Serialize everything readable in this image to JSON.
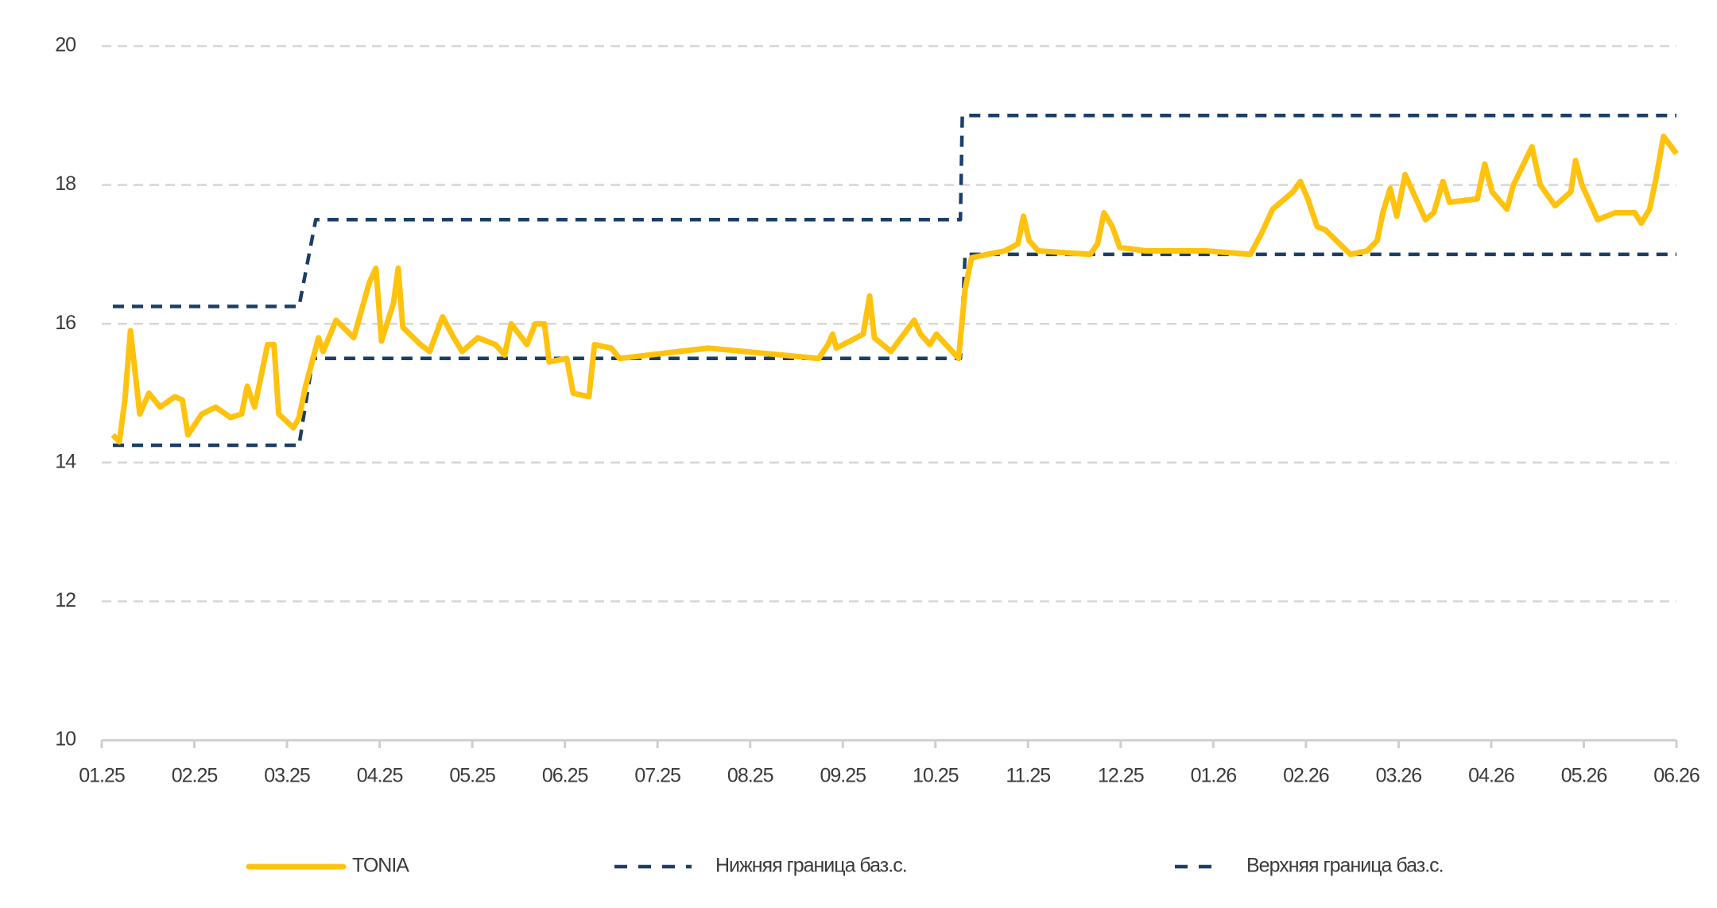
{
  "chart_data": {
    "type": "line",
    "xlim": [
      0,
      17
    ],
    "xticks": [
      {
        "value": 0,
        "label": "01.25"
      },
      {
        "value": 1,
        "label": "02.25"
      },
      {
        "value": 2,
        "label": "03.25"
      },
      {
        "value": 3,
        "label": "04.25"
      },
      {
        "value": 4,
        "label": "05.25"
      },
      {
        "value": 5,
        "label": "06.25"
      },
      {
        "value": 6,
        "label": "07.25"
      },
      {
        "value": 7,
        "label": "08.25"
      },
      {
        "value": 8,
        "label": "09.25"
      },
      {
        "value": 9,
        "label": "10.25"
      },
      {
        "value": 10,
        "label": "11.25"
      },
      {
        "value": 11,
        "label": "12.25"
      },
      {
        "value": 12,
        "label": "01.26"
      },
      {
        "value": 13,
        "label": "02.26"
      },
      {
        "value": 14,
        "label": "03.26"
      },
      {
        "value": 15,
        "label": "04.26"
      },
      {
        "value": 16,
        "label": "05.26"
      },
      {
        "value": 17,
        "label": "06.26"
      }
    ],
    "ylim": [
      10,
      20
    ],
    "yticks": [
      10,
      12,
      14,
      16,
      18,
      20
    ],
    "grid": true,
    "series": [
      {
        "name": "TONIA",
        "color": "#FFC20E",
        "style": "solid",
        "x": [
          0.12,
          0.19,
          0.25,
          0.31,
          0.36,
          0.41,
          0.51,
          0.63,
          0.79,
          0.87,
          0.93,
          1.08,
          1.23,
          1.39,
          1.51,
          1.57,
          1.65,
          1.79,
          1.86,
          1.91,
          2.07,
          2.13,
          2.2,
          2.28,
          2.34,
          2.39,
          2.53,
          2.72,
          2.89,
          2.96,
          3.02,
          3.15,
          3.2,
          3.25,
          3.44,
          3.54,
          3.68,
          3.8,
          3.89,
          4.06,
          4.25,
          4.35,
          4.42,
          4.59,
          4.68,
          4.78,
          4.83,
          5.02,
          5.09,
          5.26,
          5.32,
          5.5,
          5.59,
          6.55,
          7.74,
          7.84,
          7.89,
          7.93,
          8.22,
          8.29,
          8.34,
          8.52,
          8.77,
          8.84,
          8.94,
          9.01,
          9.25,
          9.32,
          9.39,
          9.56,
          9.75,
          9.89,
          9.95,
          10.01,
          10.11,
          10.67,
          10.75,
          10.82,
          10.91,
          10.99,
          11.27,
          11.92,
          12.4,
          12.52,
          12.64,
          12.86,
          12.94,
          13.02,
          13.12,
          13.21,
          13.48,
          13.66,
          13.77,
          13.83,
          13.91,
          13.98,
          14.07,
          14.29,
          14.38,
          14.48,
          14.55,
          14.85,
          14.93,
          15.01,
          15.17,
          15.24,
          15.44,
          15.53,
          15.69,
          15.86,
          15.91,
          15.98,
          16.15,
          16.34,
          16.55,
          16.62,
          16.71,
          16.78,
          16.86,
          17.0
        ],
        "values": [
          14.4,
          14.3,
          14.9,
          15.9,
          15.3,
          14.7,
          15.0,
          14.8,
          14.95,
          14.9,
          14.4,
          14.7,
          14.8,
          14.65,
          14.7,
          15.1,
          14.8,
          15.7,
          15.7,
          14.7,
          14.5,
          14.65,
          15.1,
          15.5,
          15.8,
          15.6,
          16.05,
          15.8,
          16.6,
          16.8,
          15.75,
          16.3,
          16.8,
          15.95,
          15.7,
          15.6,
          16.1,
          15.8,
          15.6,
          15.8,
          15.7,
          15.55,
          16.0,
          15.7,
          16.0,
          16.0,
          15.45,
          15.5,
          15.0,
          14.95,
          15.7,
          15.65,
          15.5,
          15.65,
          15.5,
          15.7,
          15.85,
          15.65,
          15.85,
          16.4,
          15.8,
          15.6,
          16.05,
          15.85,
          15.7,
          15.85,
          15.5,
          16.5,
          16.95,
          17.0,
          17.05,
          17.15,
          17.55,
          17.2,
          17.05,
          17.0,
          17.15,
          17.6,
          17.4,
          17.1,
          17.05,
          17.05,
          17.0,
          17.3,
          17.65,
          17.9,
          18.05,
          17.8,
          17.4,
          17.35,
          17.0,
          17.05,
          17.2,
          17.6,
          17.95,
          17.55,
          18.15,
          17.5,
          17.6,
          18.05,
          17.75,
          17.8,
          18.3,
          17.9,
          17.65,
          18.0,
          18.55,
          18.0,
          17.7,
          17.9,
          18.35,
          18.0,
          17.5,
          17.6,
          17.6,
          17.45,
          17.65,
          18.1,
          18.7,
          18.45
        ]
      },
      {
        "name": "Нижняя граница баз.с.",
        "color": "#1B3F66",
        "style": "dashed",
        "x": [
          0.12,
          2.13,
          2.28,
          9.27,
          9.32,
          17.0
        ],
        "values": [
          14.25,
          14.25,
          15.5,
          15.5,
          17.0,
          17.0
        ]
      },
      {
        "name": "Верхняя граница баз.с.",
        "color": "#1B3F66",
        "style": "dashed",
        "x": [
          0.12,
          2.13,
          2.31,
          9.27,
          9.29,
          17.0
        ],
        "values": [
          16.25,
          16.25,
          17.5,
          17.5,
          19.0,
          19.0
        ]
      }
    ]
  }
}
